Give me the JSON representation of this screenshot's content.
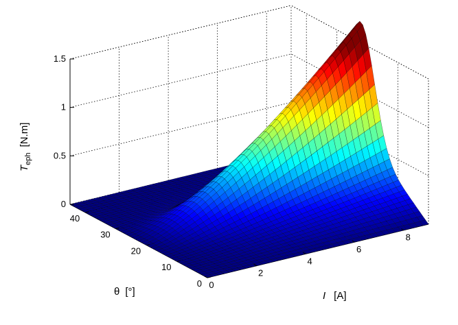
{
  "chart_data": {
    "type": "surface",
    "colormap": "jet",
    "z": {
      "label_symbol": "T",
      "label_subscript": "eph",
      "label_unit": "[N.m]",
      "lim": [
        0,
        1.5
      ],
      "ticks": [
        "0",
        "0.5",
        "1",
        "1.5"
      ]
    },
    "x": {
      "label_symbol": "I",
      "label_unit": "[A]",
      "lim": [
        0,
        9
      ],
      "ticks": [
        "0",
        "2",
        "4",
        "6",
        "8"
      ]
    },
    "y": {
      "label_symbol": "θ",
      "label_unit": "[°]",
      "lim": [
        0,
        45
      ],
      "ticks": [
        "0",
        "10",
        "20",
        "30",
        "40"
      ]
    },
    "grid": true,
    "peak": {
      "I": 9,
      "theta": 22,
      "T": 1.45
    },
    "surface_samples": [
      {
        "I": 9,
        "theta": 0,
        "T": 0
      },
      {
        "I": 9,
        "theta": 5,
        "T": 0.08
      },
      {
        "I": 9,
        "theta": 10,
        "T": 0.35
      },
      {
        "I": 9,
        "theta": 15,
        "T": 0.95
      },
      {
        "I": 9,
        "theta": 20,
        "T": 1.38
      },
      {
        "I": 9,
        "theta": 22,
        "T": 1.45
      },
      {
        "I": 9,
        "theta": 30,
        "T": 1.1
      },
      {
        "I": 9,
        "theta": 45,
        "T": 0.05
      },
      {
        "I": 6,
        "theta": 22,
        "T": 0.75
      },
      {
        "I": 3,
        "theta": 22,
        "T": 0.2
      }
    ]
  }
}
